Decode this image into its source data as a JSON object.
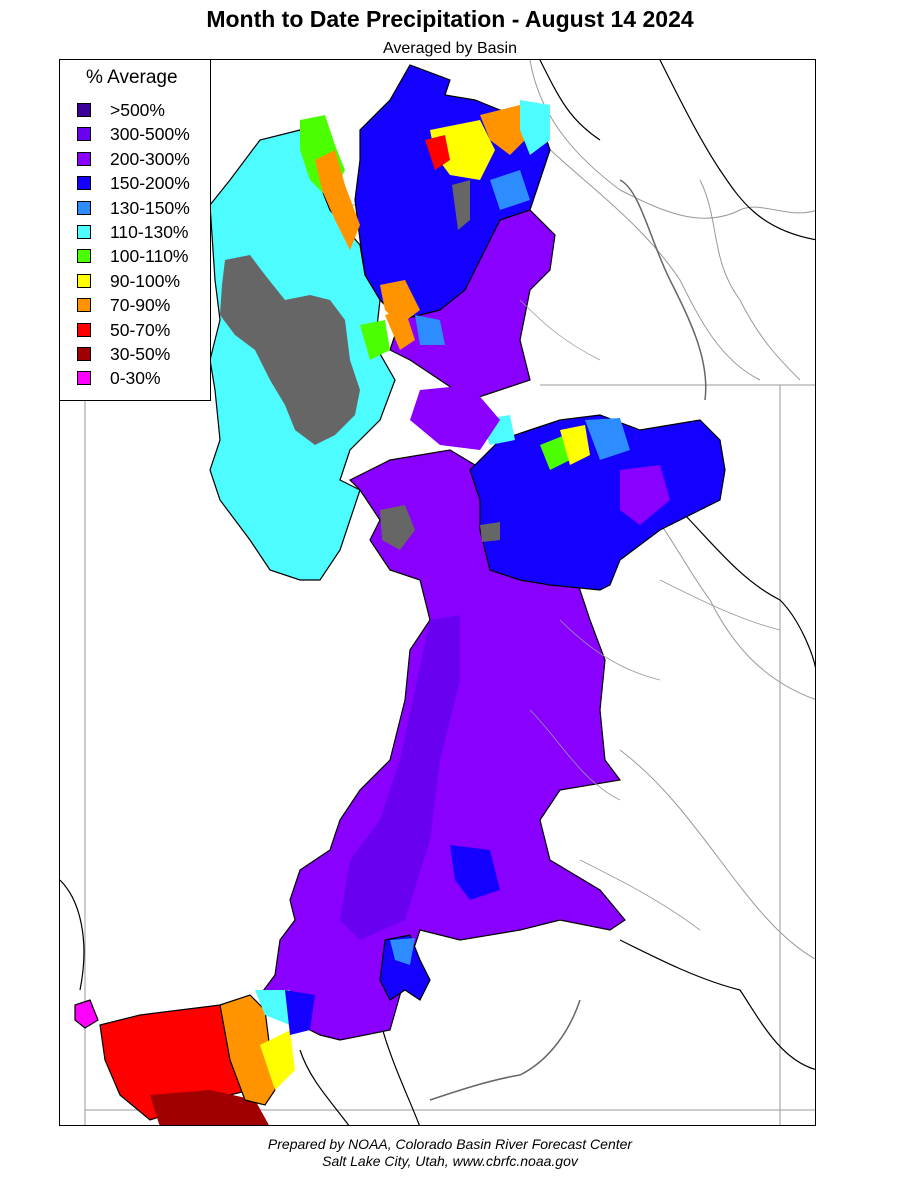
{
  "header": {
    "title": "Month to Date Precipitation - August 14 2024",
    "subtitle": "Averaged by Basin"
  },
  "legend": {
    "title": "% Average",
    "items": [
      {
        "label": ">500%",
        "color": "#3b0096"
      },
      {
        "label": "300-500%",
        "color": "#6a00f0"
      },
      {
        "label": "200-300%",
        "color": "#8a00ff"
      },
      {
        "label": "150-200%",
        "color": "#1400ff"
      },
      {
        "label": "130-150%",
        "color": "#2d8cff"
      },
      {
        "label": "110-130%",
        "color": "#4dfcff"
      },
      {
        "label": "100-110%",
        "color": "#4cff00"
      },
      {
        "label": "90-100%",
        "color": "#ffff00"
      },
      {
        "label": "70-90%",
        "color": "#ff9400"
      },
      {
        "label": "50-70%",
        "color": "#ff0000"
      },
      {
        "label": "30-50%",
        "color": "#a00000"
      },
      {
        "label": "0-30%",
        "color": "#ff00ff"
      }
    ]
  },
  "map": {
    "no_data_color": "#666666",
    "boundary_color": "#000000",
    "river_color": "#999999"
  },
  "footer": {
    "line1": "Prepared by NOAA, Colorado Basin River Forecast Center",
    "line2": "Salt Lake City, Utah, www.cbrfc.noaa.gov"
  }
}
